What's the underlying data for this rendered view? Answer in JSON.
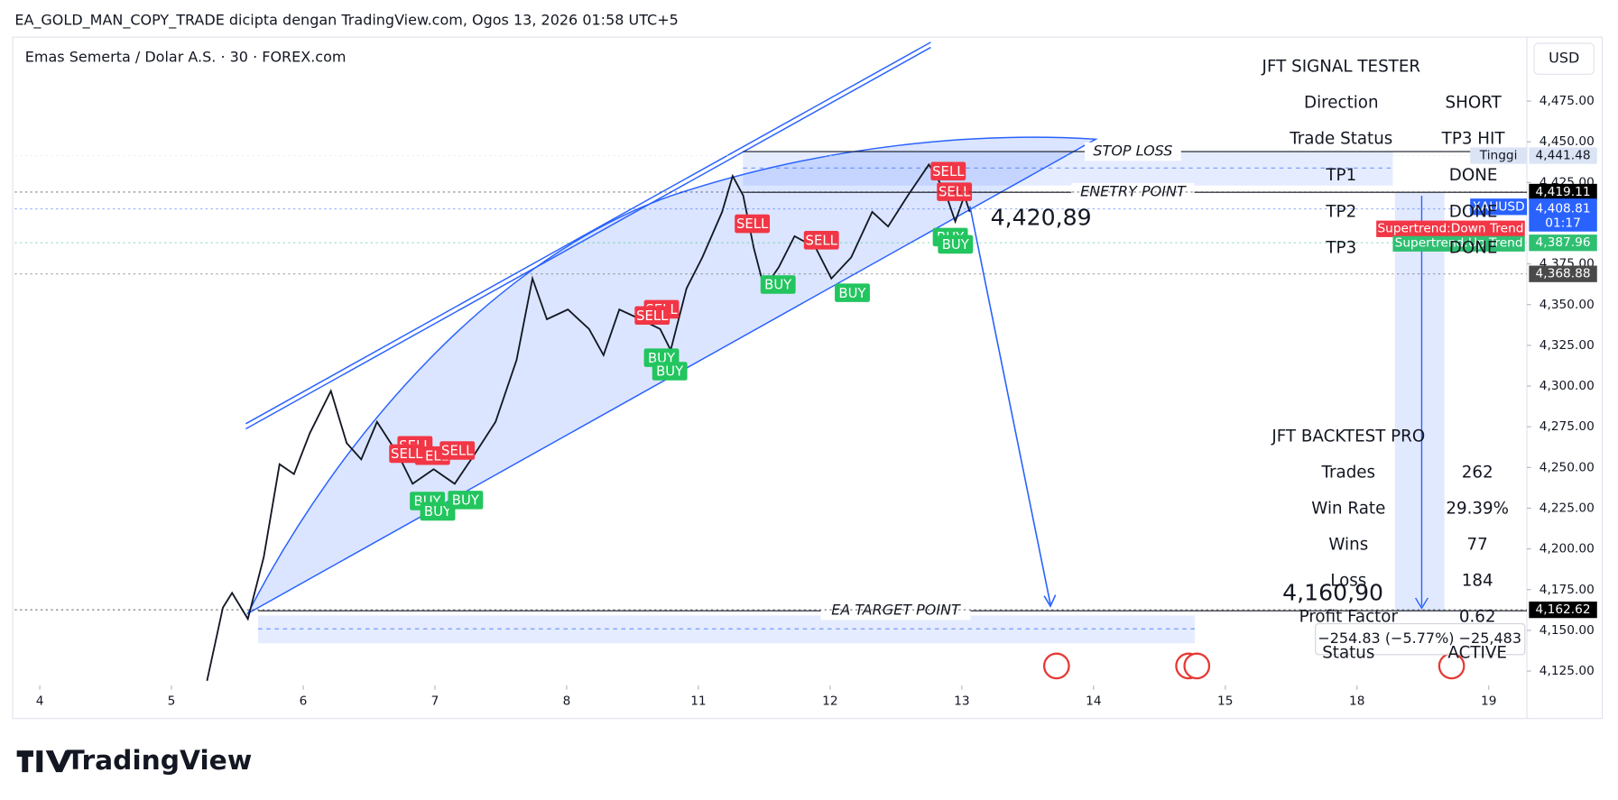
{
  "chart_data": {
    "type": "line",
    "title": "EA_GOLD_MAN_COPY_TRADE dicipta dengan TradingView.com, Ogos 13, 2026 01:58 UTC+5",
    "subtitle": "Emas Semerta / Dolar A.S. · 30 · FOREX.com",
    "currency": "USD",
    "color": "#131722",
    "x": [
      1.27,
      1.39,
      1.46,
      1.58,
      1.7,
      1.82,
      1.93,
      2.05,
      2.21,
      2.33,
      2.44,
      2.56,
      2.72,
      2.83,
      2.99,
      3.15,
      3.3,
      3.46,
      3.62,
      3.74,
      3.85,
      4.01,
      4.17,
      4.28,
      4.4,
      4.56,
      4.71,
      4.79,
      4.91,
      5.03,
      5.18,
      5.26,
      5.34,
      5.42,
      5.5,
      5.61,
      5.73,
      5.89,
      6.01,
      6.16,
      6.32,
      6.44,
      6.59,
      6.75,
      6.87,
      6.95,
      7.02,
      7.06
    ],
    "values": [
      4119,
      4164,
      4173,
      4157,
      4195,
      4252,
      4246,
      4271,
      4297,
      4265,
      4255,
      4278,
      4258,
      4240,
      4249,
      4240,
      4258,
      4278,
      4316,
      4366,
      4341,
      4347,
      4335,
      4319,
      4347,
      4341,
      4335,
      4322,
      4360,
      4379,
      4407,
      4429,
      4417,
      4385,
      4360,
      4373,
      4392,
      4385,
      4366,
      4379,
      4407,
      4398,
      4417,
      4436,
      4420,
      4401,
      4417,
      4407
    ],
    "xlim": [
      -0.19,
      11.29
    ],
    "xticks": [
      {
        "value": 0,
        "label": "4"
      },
      {
        "value": 1,
        "label": "5"
      },
      {
        "value": 2,
        "label": "6"
      },
      {
        "value": 3,
        "label": "7"
      },
      {
        "value": 4,
        "label": "8"
      },
      {
        "value": 5,
        "label": "11"
      },
      {
        "value": 6,
        "label": "12"
      },
      {
        "value": 7,
        "label": "13"
      },
      {
        "value": 8,
        "label": "14"
      },
      {
        "value": 9,
        "label": "15"
      },
      {
        "value": 10,
        "label": "18"
      },
      {
        "value": 11,
        "label": "19"
      }
    ],
    "ylim": [
      4116.1,
      4513
    ],
    "yticks": [
      {
        "value": 4475,
        "label": "4,475.00"
      },
      {
        "value": 4450,
        "label": "4,450.00"
      },
      {
        "value": 4425,
        "label": "4,425.00"
      },
      {
        "value": 4375,
        "label": "4,375.00"
      },
      {
        "value": 4350,
        "label": "4,350.00"
      },
      {
        "value": 4325,
        "label": "4,325.00"
      },
      {
        "value": 4300,
        "label": "4,300.00"
      },
      {
        "value": 4275,
        "label": "4,275.00"
      },
      {
        "value": 4250,
        "label": "4,250.00"
      },
      {
        "value": 4225,
        "label": "4,225.00"
      },
      {
        "value": 4200,
        "label": "4,200.00"
      },
      {
        "value": 4175,
        "label": "4,175.00"
      },
      {
        "value": 4150,
        "label": "4,150.00"
      },
      {
        "value": 4125,
        "label": "4,125.00"
      }
    ],
    "grid": false,
    "levels": [
      {
        "label": "STOP LOSS",
        "value": 4444
      },
      {
        "label": "ENETRY POINT",
        "value": 4419
      },
      {
        "label": "EA TARGET POINT",
        "value": 4162
      }
    ],
    "price_labels": [
      {
        "value": 4441.48,
        "label": "4,441.48",
        "color": "#dbe4f5",
        "tag": "Tinggi"
      },
      {
        "value": 4419.11,
        "label": "4,419.11",
        "color": "#000000"
      },
      {
        "value": 4408.81,
        "label": "4,408.81",
        "color": "#2962ff",
        "tag": "XAUUSD",
        "sub": "01:17"
      },
      {
        "value": 4387.96,
        "label": "4,387.96",
        "color": "#2fbf71"
      },
      {
        "value": 4368.88,
        "label": "4,368.88",
        "color": "#4a4a4a"
      },
      {
        "value": 4162.62,
        "label": "4,162.62",
        "color": "#000000"
      }
    ],
    "signals": [
      "SELL",
      "SELL",
      "SELL",
      "SELL",
      "SELL",
      "SELL",
      "SELL",
      "SELL",
      "SELL",
      "SELL",
      "BUY",
      "BUY",
      "BUY",
      "BUY",
      "BUY",
      "BUY",
      "BUY",
      "BUY",
      "BUY"
    ],
    "annotations": {
      "entry_price": "4,420,89",
      "target_price": "4,160,90",
      "measure": "−254.83 (−5.77%) −25,483",
      "trend_down": "Supertrend:Down Trend",
      "trend_up": "Supertrend:Up Trend"
    }
  },
  "signal_tester": {
    "title": "JFT SIGNAL TESTER",
    "rows": [
      [
        "Direction",
        "SHORT"
      ],
      [
        "Trade Status",
        "TP3 HIT"
      ],
      [
        "TP1",
        "DONE"
      ],
      [
        "TP2",
        "DONE"
      ],
      [
        "TP3",
        "DONE"
      ]
    ]
  },
  "backtest": {
    "title": "JFT BACKTEST PRO",
    "rows": [
      [
        "Trades",
        "262"
      ],
      [
        "Win Rate",
        "29.39%"
      ],
      [
        "Wins",
        "77"
      ],
      [
        "Loss",
        "184"
      ],
      [
        "Profit Factor",
        "0.62"
      ],
      [
        "Status",
        "ACTIVE"
      ]
    ]
  },
  "footer": {
    "brand": "TradingView"
  }
}
